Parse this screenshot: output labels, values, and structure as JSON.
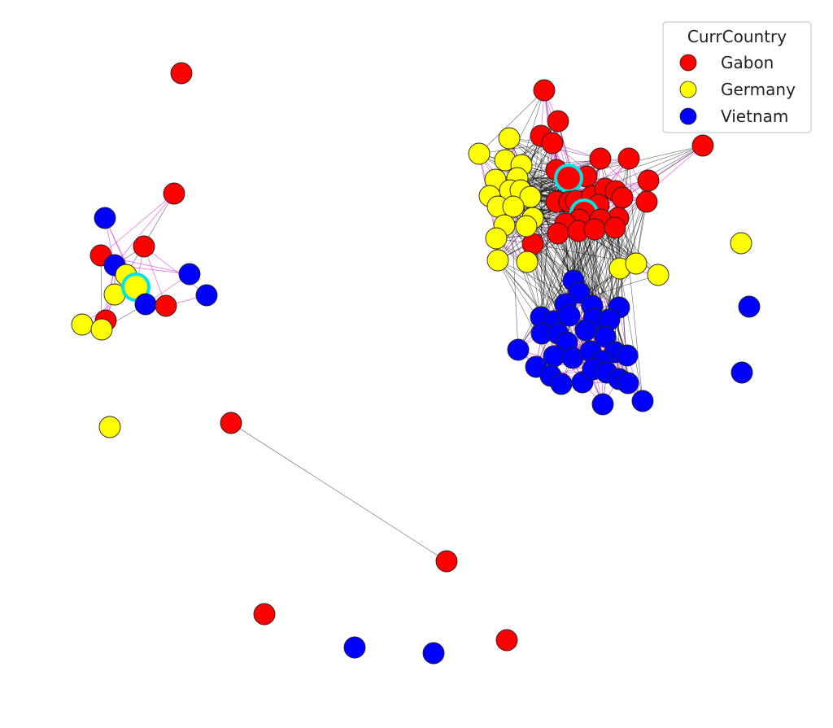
{
  "legend": {
    "title": "CurrCountry",
    "entries": [
      {
        "label": "Gabon",
        "color": "#ff0000"
      },
      {
        "label": "Germany",
        "color": "#ffff00"
      },
      {
        "label": "Vietnam",
        "color": "#0000ff"
      }
    ]
  },
  "colors": {
    "edge_inter": "#000000",
    "edge_intra": "#e040e0",
    "highlight_ring": "#00e5e5",
    "node_outline": "#222222"
  }
}
